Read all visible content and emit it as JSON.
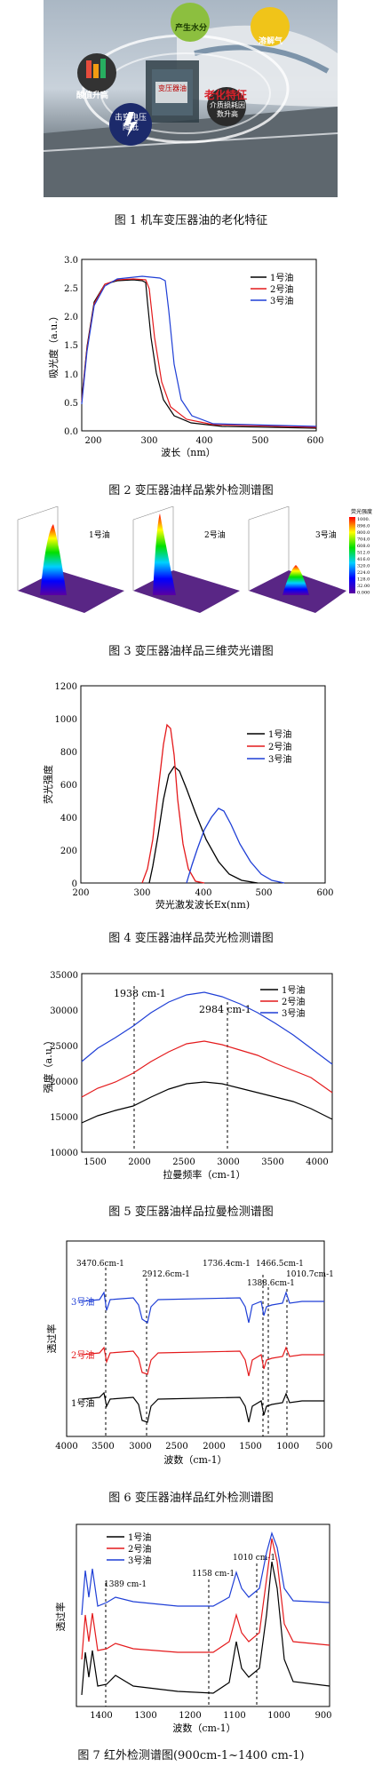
{
  "fig1": {
    "caption": "图 1  机车变压器油的老化特征",
    "center_label": "老化特征",
    "core_label": "变压器油",
    "bubbles": [
      "产生水分",
      "溶解气",
      "介质损耗因数升高",
      "击穿电压降低",
      "酸值升高"
    ]
  },
  "fig2": {
    "caption": "图 2  变压器油样品紫外检测谱图",
    "ylabel": "吸光度（a.u.）",
    "xlabel": "波长（nm）",
    "legend": [
      "1号油",
      "2号油",
      "3号油"
    ],
    "colors": [
      "#000000",
      "#e41a1c",
      "#1f3fd6"
    ],
    "x_ticks": [
      "200",
      "300",
      "400",
      "500",
      "600"
    ],
    "y_ticks": [
      "0.0",
      "0.5",
      "1.0",
      "1.5",
      "2.0",
      "2.5",
      "3.0"
    ]
  },
  "fig3": {
    "caption": "图 3  变压器油样品三维荧光谱图",
    "panel_labels": [
      "1号油",
      "2号油",
      "3号油"
    ],
    "colorbar_title": "荧光强度",
    "colorbar_ticks": [
      "1000.",
      "896.0",
      "800.0",
      "704.0",
      "608.0",
      "512.0",
      "416.0",
      "320.0",
      "224.0",
      "128.0",
      "32.00",
      "0.000"
    ]
  },
  "fig4": {
    "caption": "图 4  变压器油样品荧光检测谱图",
    "ylabel": "荧光强度",
    "xlabel": "荧光激发波长Ex(nm)",
    "legend": [
      "1号油",
      "2号油",
      "3号油"
    ],
    "x_ticks": [
      "200",
      "300",
      "400",
      "500",
      "600"
    ],
    "y_ticks": [
      "0",
      "200",
      "400",
      "600",
      "800",
      "1000",
      "1200"
    ]
  },
  "fig5": {
    "caption": "图 5  变压器油样品拉曼检测谱图",
    "ylabel": "强度（a.u.）",
    "xlabel": "拉曼频率（cm-1）",
    "legend": [
      "1号油",
      "2号油",
      "3号油"
    ],
    "annotations": [
      "1938 cm-1",
      "2984 cm-1"
    ],
    "x_ticks": [
      "1500",
      "2000",
      "2500",
      "3000",
      "3500",
      "4000"
    ],
    "y_ticks": [
      "10000",
      "15000",
      "20000",
      "25000",
      "30000",
      "35000"
    ]
  },
  "fig6": {
    "caption": "图 6  变压器油样品红外检测谱图",
    "ylabel": "透过率",
    "xlabel": "波数（cm-1）",
    "trace_labels": [
      "3号油",
      "2号油",
      "1号油"
    ],
    "annotations": [
      "3470.6cm-1",
      "2912.6cm-1",
      "1736.4cm-1",
      "1466.5cm-1",
      "1388.6cm-1",
      "1010.7cm-1"
    ],
    "x_ticks": [
      "4000",
      "3500",
      "3000",
      "2500",
      "2000",
      "1500",
      "1000",
      "500"
    ]
  },
  "fig7": {
    "caption": "图 7  红外检测谱图(900cm-1~1400 cm-1)",
    "ylabel": "透过率",
    "xlabel": "波数（cm-1）",
    "legend": [
      "1号油",
      "2号油",
      "3号油"
    ],
    "annotations": [
      "1389 cm-1",
      "1158 cm-1",
      "1010 cm-1"
    ],
    "x_ticks": [
      "1400",
      "1300",
      "1200",
      "1100",
      "1000",
      "900"
    ]
  }
}
